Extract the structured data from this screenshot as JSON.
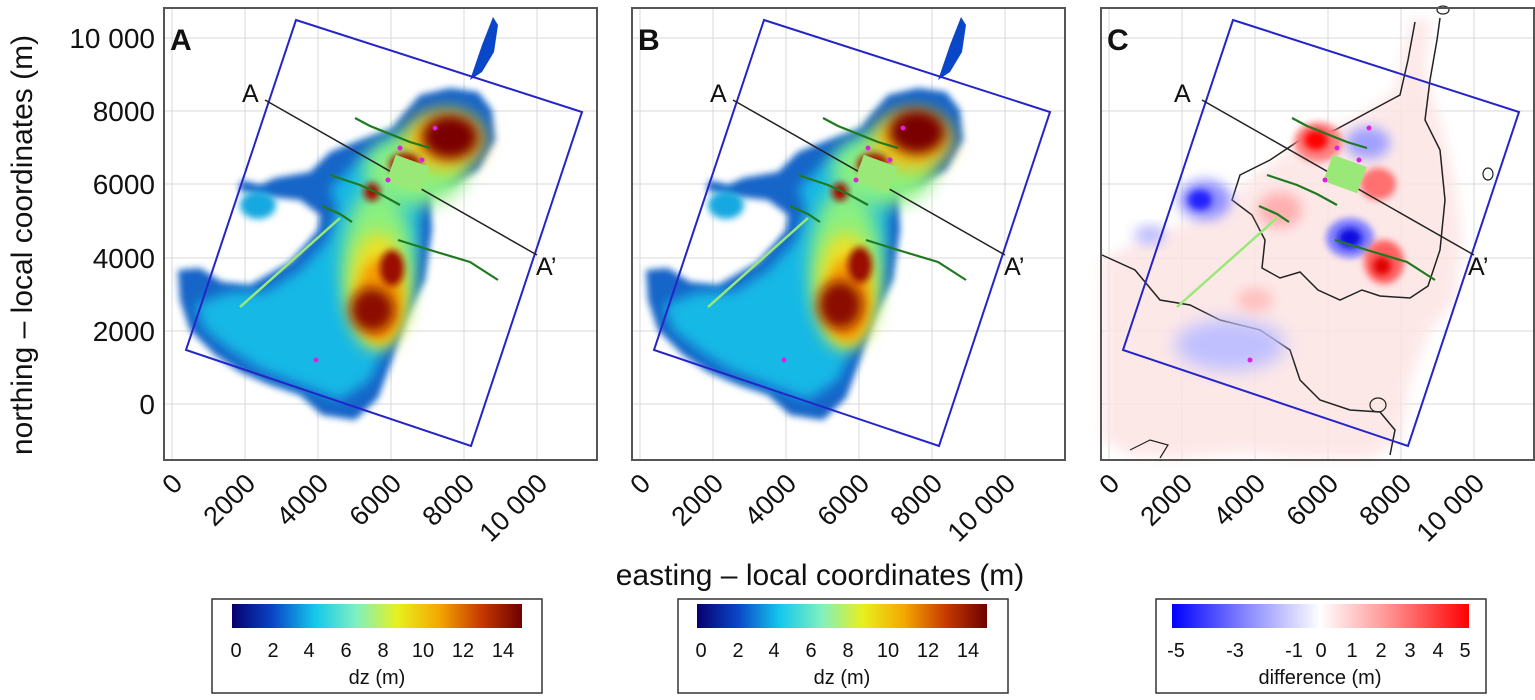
{
  "figure": {
    "ylabel": "northing – local coordinates (m)",
    "xlabel": "easting – local coordinates (m)",
    "y_ticks": [
      "10 000",
      "8000",
      "6000",
      "4000",
      "2000",
      "0"
    ],
    "x_ticks": [
      "0",
      "2000",
      "4000",
      "6000",
      "8000",
      "10 000"
    ]
  },
  "panels": [
    {
      "letter": "A",
      "section_start": "A",
      "section_end": "A’"
    },
    {
      "letter": "B",
      "section_start": "A",
      "section_end": "A’"
    },
    {
      "letter": "C",
      "section_start": "A",
      "section_end": "A’"
    }
  ],
  "colorbars": [
    {
      "label": "dz (m)",
      "ticks": [
        "0",
        "2",
        "4",
        "6",
        "8",
        "10",
        "12",
        "14"
      ],
      "range": [
        0,
        15
      ],
      "colors": [
        "#06006e",
        "#0a47c8",
        "#14c8ec",
        "#7ff0c0",
        "#e8f01e",
        "#f4a800",
        "#c83a00",
        "#6e0000"
      ]
    },
    {
      "label": "dz (m)",
      "ticks": [
        "0",
        "2",
        "4",
        "6",
        "8",
        "10",
        "12",
        "14"
      ],
      "range": [
        0,
        15
      ],
      "colors": [
        "#06006e",
        "#0a47c8",
        "#14c8ec",
        "#7ff0c0",
        "#e8f01e",
        "#f4a800",
        "#c83a00",
        "#6e0000"
      ]
    },
    {
      "label": "difference (m)",
      "ticks": [
        "-5",
        "-3",
        "-1",
        "0",
        "1",
        "2",
        "3",
        "4",
        "5"
      ],
      "range": [
        -5,
        5
      ],
      "colors": [
        "#0000ff",
        "#8888ff",
        "#ffffff",
        "#ff8888",
        "#ff0000"
      ]
    }
  ],
  "chart_data": [
    {
      "type": "heatmap",
      "title": "A",
      "xlabel": "easting – local coordinates (m)",
      "ylabel": "northing – local coordinates (m)",
      "xlim": [
        -200,
        11500
      ],
      "ylim": [
        -1200,
        10700
      ],
      "colorbar": {
        "label": "dz (m)",
        "range": [
          0,
          15
        ]
      },
      "hotspots": [
        {
          "x": 7600,
          "y": 7300,
          "dz": 14
        },
        {
          "x": 5900,
          "y": 2800,
          "dz": 14
        },
        {
          "x": 6300,
          "y": 3800,
          "dz": 12
        },
        {
          "x": 6400,
          "y": 6200,
          "dz": 10
        },
        {
          "x": 5400,
          "y": 5800,
          "dz": 10
        },
        {
          "x": 5600,
          "y": 4600,
          "dz": 8
        }
      ],
      "section_line": {
        "start": [
          2500,
          8200
        ],
        "end": [
          9900,
          4100
        ]
      }
    },
    {
      "type": "heatmap",
      "title": "B",
      "xlabel": "easting – local coordinates (m)",
      "ylabel": "northing – local coordinates (m)",
      "xlim": [
        -200,
        11500
      ],
      "ylim": [
        -1200,
        10700
      ],
      "colorbar": {
        "label": "dz (m)",
        "range": [
          0,
          15
        ]
      },
      "hotspots": [
        {
          "x": 7500,
          "y": 7400,
          "dz": 14
        },
        {
          "x": 5800,
          "y": 2900,
          "dz": 14
        },
        {
          "x": 6300,
          "y": 3900,
          "dz": 12
        },
        {
          "x": 6400,
          "y": 6200,
          "dz": 11
        },
        {
          "x": 5400,
          "y": 5800,
          "dz": 10
        }
      ],
      "section_line": {
        "start": [
          2500,
          8200
        ],
        "end": [
          9900,
          4100
        ]
      }
    },
    {
      "type": "heatmap",
      "title": "C",
      "xlabel": "easting – local coordinates (m)",
      "ylabel": "northing – local coordinates (m)",
      "xlim": [
        -200,
        11500
      ],
      "ylim": [
        -1200,
        10700
      ],
      "colorbar": {
        "label": "difference (m)",
        "range": [
          -5,
          5
        ]
      },
      "anomalies": [
        {
          "x": 5600,
          "y": 7200,
          "diff": 5
        },
        {
          "x": 7400,
          "y": 5900,
          "diff": 4
        },
        {
          "x": 7500,
          "y": 3900,
          "diff": 5
        },
        {
          "x": 6700,
          "y": 4500,
          "diff": -5
        },
        {
          "x": 2700,
          "y": 5600,
          "diff": -5
        },
        {
          "x": 7000,
          "y": 6900,
          "diff": -3
        },
        {
          "x": 3600,
          "y": 1800,
          "diff": -2
        }
      ],
      "section_line": {
        "start": [
          2500,
          8200
        ],
        "end": [
          9900,
          4100
        ]
      }
    }
  ]
}
